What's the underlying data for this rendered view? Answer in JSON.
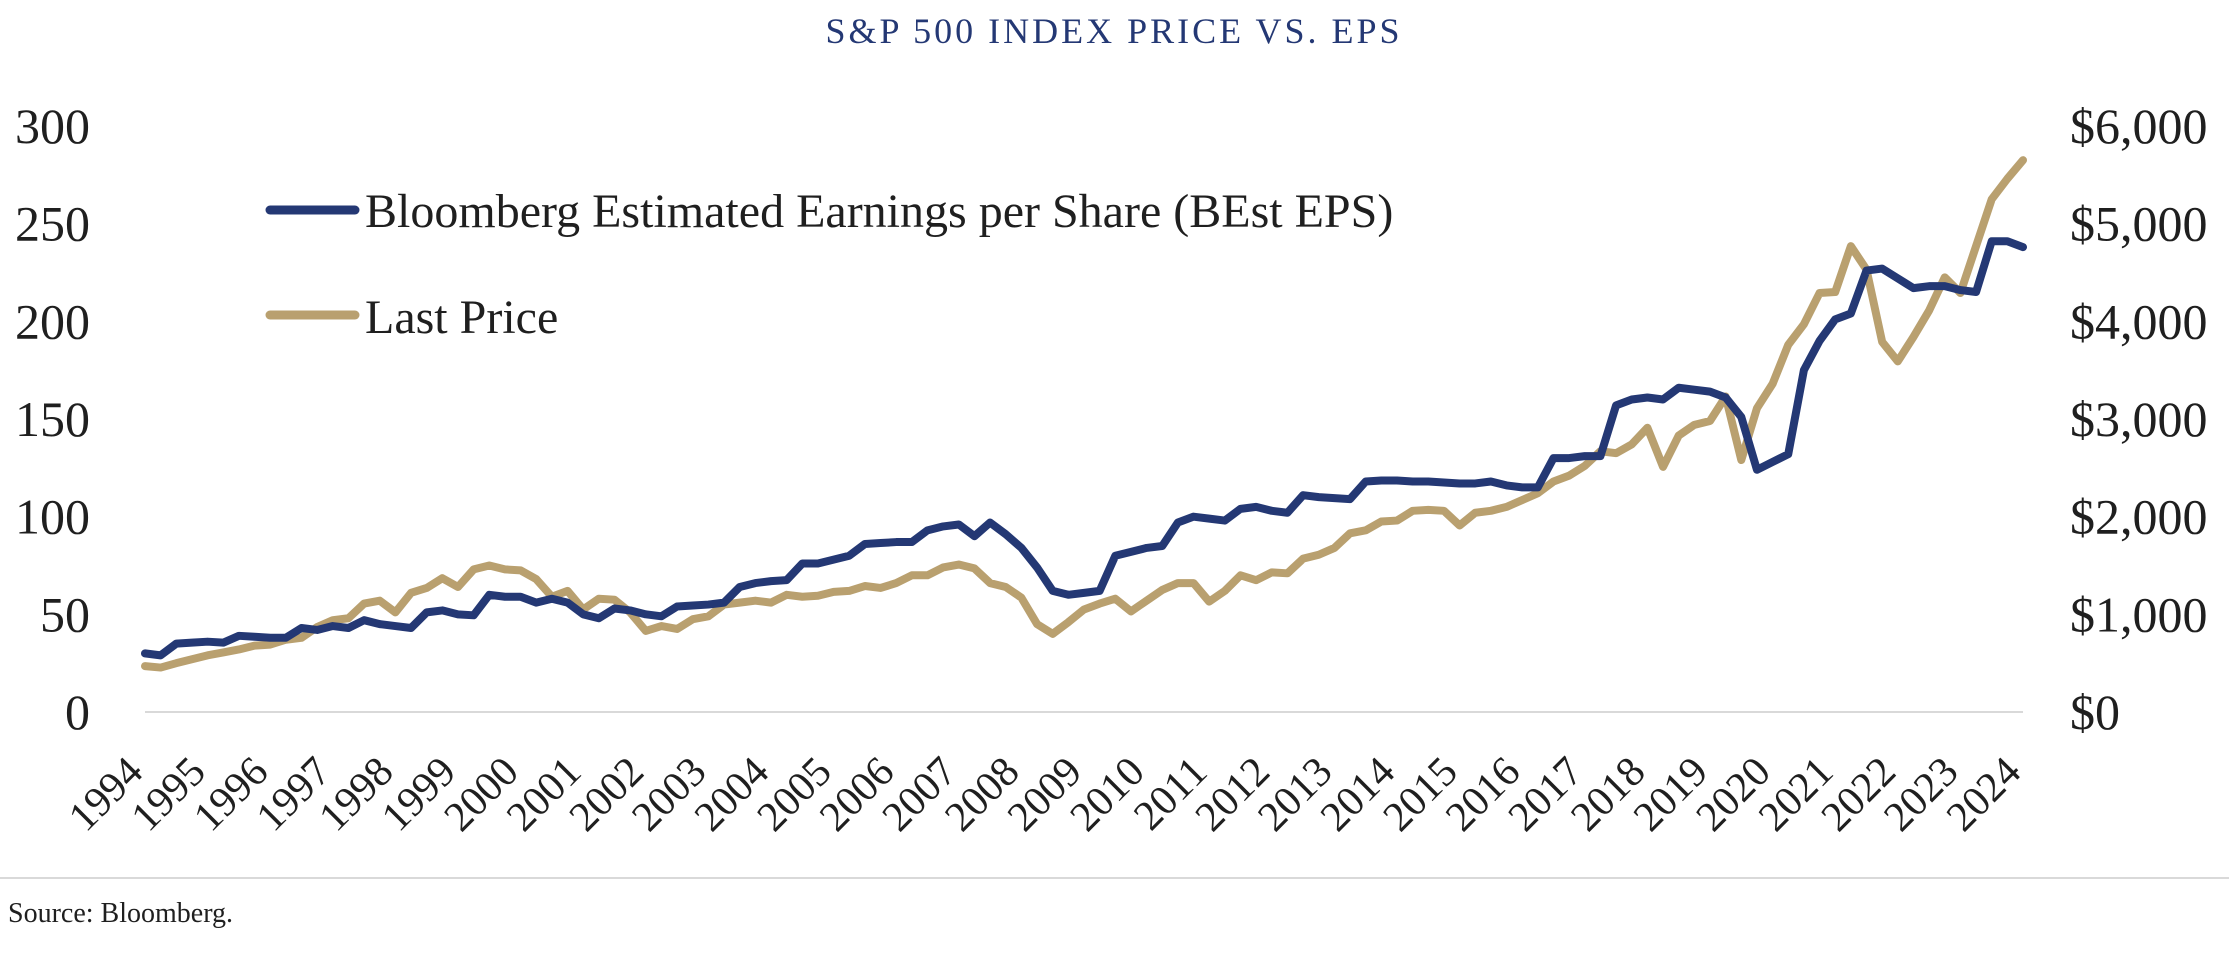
{
  "chart_data": {
    "type": "line",
    "title": "S&P 500 INDEX PRICE VS. EPS",
    "source": "Source: Bloomberg.",
    "xlabel": "",
    "ylabel_left": "",
    "ylabel_right": "",
    "legend_position": "top-left",
    "grid": false,
    "colors": {
      "eps": "#243874",
      "price": "#B9A06F",
      "title": "#243874",
      "baseline": "#d9d9d9",
      "separator": "#d9d9d9",
      "text": "#1f1f1f"
    },
    "x_ticks": [
      "1994",
      "1995",
      "1996",
      "1997",
      "1998",
      "1999",
      "2000",
      "2001",
      "2002",
      "2003",
      "2004",
      "2005",
      "2006",
      "2007",
      "2008",
      "2009",
      "2010",
      "2011",
      "2012",
      "2013",
      "2014",
      "2015",
      "2016",
      "2017",
      "2018",
      "2019",
      "2020",
      "2021",
      "2022",
      "2023",
      "2024"
    ],
    "x_range": [
      1994.0,
      2024.0
    ],
    "y_left": {
      "range": [
        0,
        300
      ],
      "ticks": [
        0,
        50,
        100,
        150,
        200,
        250,
        300
      ],
      "tick_labels": [
        "0",
        "50",
        "100",
        "150",
        "200",
        "250",
        "300"
      ]
    },
    "y_right": {
      "range": [
        0,
        6000
      ],
      "ticks": [
        0,
        1000,
        2000,
        3000,
        4000,
        5000,
        6000
      ],
      "tick_labels": [
        "$0",
        "$1,000",
        "$2,000",
        "$3,000",
        "$4,000",
        "$5,000",
        "$6,000"
      ]
    },
    "series": [
      {
        "id": "eps",
        "name": "Bloomberg Estimated Earnings per Share (BEst EPS)",
        "axis": "left",
        "points": [
          [
            1994.0,
            30
          ],
          [
            1994.25,
            29
          ],
          [
            1994.5,
            35
          ],
          [
            1994.75,
            35.5
          ],
          [
            1995.0,
            36
          ],
          [
            1995.25,
            35.5
          ],
          [
            1995.5,
            39
          ],
          [
            1995.75,
            38.5
          ],
          [
            1996.0,
            38
          ],
          [
            1996.25,
            38
          ],
          [
            1996.5,
            43
          ],
          [
            1996.75,
            42
          ],
          [
            1997.0,
            44
          ],
          [
            1997.25,
            43
          ],
          [
            1997.5,
            47
          ],
          [
            1997.75,
            45
          ],
          [
            1998.0,
            44
          ],
          [
            1998.25,
            43
          ],
          [
            1998.5,
            51
          ],
          [
            1998.75,
            52
          ],
          [
            1999.0,
            50
          ],
          [
            1999.25,
            49.5
          ],
          [
            1999.5,
            60
          ],
          [
            1999.75,
            59
          ],
          [
            2000.0,
            59
          ],
          [
            2000.25,
            56
          ],
          [
            2000.5,
            58
          ],
          [
            2000.75,
            56
          ],
          [
            2001.0,
            50
          ],
          [
            2001.25,
            48
          ],
          [
            2001.5,
            53
          ],
          [
            2001.75,
            52
          ],
          [
            2002.0,
            50
          ],
          [
            2002.25,
            49
          ],
          [
            2002.5,
            54
          ],
          [
            2002.75,
            54.5
          ],
          [
            2003.0,
            55
          ],
          [
            2003.25,
            56
          ],
          [
            2003.5,
            64
          ],
          [
            2003.75,
            66
          ],
          [
            2004.0,
            67
          ],
          [
            2004.25,
            67.5
          ],
          [
            2004.5,
            76
          ],
          [
            2004.75,
            76
          ],
          [
            2005.0,
            78
          ],
          [
            2005.25,
            80
          ],
          [
            2005.5,
            86
          ],
          [
            2005.75,
            86.5
          ],
          [
            2006.0,
            87
          ],
          [
            2006.25,
            87
          ],
          [
            2006.5,
            93
          ],
          [
            2006.75,
            95
          ],
          [
            2007.0,
            96
          ],
          [
            2007.25,
            90
          ],
          [
            2007.5,
            97
          ],
          [
            2007.75,
            91
          ],
          [
            2008.0,
            84
          ],
          [
            2008.25,
            74
          ],
          [
            2008.5,
            62
          ],
          [
            2008.75,
            60
          ],
          [
            2009.0,
            61
          ],
          [
            2009.25,
            62
          ],
          [
            2009.5,
            80
          ],
          [
            2009.75,
            82
          ],
          [
            2010.0,
            84
          ],
          [
            2010.25,
            85
          ],
          [
            2010.5,
            97
          ],
          [
            2010.75,
            100
          ],
          [
            2011.0,
            99
          ],
          [
            2011.25,
            98
          ],
          [
            2011.5,
            104
          ],
          [
            2011.75,
            105
          ],
          [
            2012.0,
            103
          ],
          [
            2012.25,
            102
          ],
          [
            2012.5,
            111
          ],
          [
            2012.75,
            110
          ],
          [
            2013.0,
            109.5
          ],
          [
            2013.25,
            109
          ],
          [
            2013.5,
            118
          ],
          [
            2013.75,
            118.5
          ],
          [
            2014.0,
            118.5
          ],
          [
            2014.25,
            118
          ],
          [
            2014.5,
            118
          ],
          [
            2014.75,
            117.5
          ],
          [
            2015.0,
            117
          ],
          [
            2015.25,
            117
          ],
          [
            2015.5,
            118
          ],
          [
            2015.75,
            116
          ],
          [
            2016.0,
            115
          ],
          [
            2016.25,
            115
          ],
          [
            2016.5,
            130
          ],
          [
            2016.75,
            130
          ],
          [
            2017.0,
            131
          ],
          [
            2017.25,
            131
          ],
          [
            2017.5,
            157
          ],
          [
            2017.75,
            160
          ],
          [
            2018.0,
            161
          ],
          [
            2018.25,
            160
          ],
          [
            2018.5,
            166
          ],
          [
            2018.75,
            165
          ],
          [
            2019.0,
            164
          ],
          [
            2019.25,
            161
          ],
          [
            2019.5,
            151
          ],
          [
            2019.75,
            124
          ],
          [
            2020.0,
            128
          ],
          [
            2020.25,
            132
          ],
          [
            2020.5,
            175
          ],
          [
            2020.75,
            190
          ],
          [
            2021.0,
            201
          ],
          [
            2021.25,
            204
          ],
          [
            2021.5,
            226
          ],
          [
            2021.75,
            227
          ],
          [
            2022.0,
            222
          ],
          [
            2022.25,
            217
          ],
          [
            2022.5,
            218
          ],
          [
            2022.75,
            218
          ],
          [
            2023.0,
            216
          ],
          [
            2023.25,
            215
          ],
          [
            2023.5,
            241
          ],
          [
            2023.75,
            241
          ],
          [
            2024.0,
            238
          ]
        ]
      },
      {
        "id": "price",
        "name": "Last Price",
        "axis": "right",
        "points": [
          [
            1994.0,
            470
          ],
          [
            1994.25,
            455
          ],
          [
            1994.5,
            500
          ],
          [
            1994.75,
            540
          ],
          [
            1995.0,
            580
          ],
          [
            1995.25,
            610
          ],
          [
            1995.5,
            640
          ],
          [
            1995.75,
            680
          ],
          [
            1996.0,
            690
          ],
          [
            1996.25,
            740
          ],
          [
            1996.5,
            760
          ],
          [
            1996.75,
            870
          ],
          [
            1997.0,
            940
          ],
          [
            1997.25,
            960
          ],
          [
            1997.5,
            1110
          ],
          [
            1997.75,
            1140
          ],
          [
            1998.0,
            1020
          ],
          [
            1998.25,
            1220
          ],
          [
            1998.5,
            1270
          ],
          [
            1998.75,
            1370
          ],
          [
            1999.0,
            1280
          ],
          [
            1999.25,
            1460
          ],
          [
            1999.5,
            1500
          ],
          [
            1999.75,
            1460
          ],
          [
            2000.0,
            1450
          ],
          [
            2000.25,
            1360
          ],
          [
            2000.5,
            1180
          ],
          [
            2000.75,
            1240
          ],
          [
            2001.0,
            1050
          ],
          [
            2001.25,
            1160
          ],
          [
            2001.5,
            1150
          ],
          [
            2001.75,
            1020
          ],
          [
            2002.0,
            830
          ],
          [
            2002.25,
            880
          ],
          [
            2002.5,
            850
          ],
          [
            2002.75,
            950
          ],
          [
            2003.0,
            980
          ],
          [
            2003.25,
            1100
          ],
          [
            2003.5,
            1120
          ],
          [
            2003.75,
            1140
          ],
          [
            2004.0,
            1120
          ],
          [
            2004.25,
            1200
          ],
          [
            2004.5,
            1180
          ],
          [
            2004.75,
            1190
          ],
          [
            2005.0,
            1230
          ],
          [
            2005.25,
            1240
          ],
          [
            2005.5,
            1290
          ],
          [
            2005.75,
            1270
          ],
          [
            2006.0,
            1320
          ],
          [
            2006.25,
            1400
          ],
          [
            2006.5,
            1400
          ],
          [
            2006.75,
            1480
          ],
          [
            2007.0,
            1510
          ],
          [
            2007.25,
            1470
          ],
          [
            2007.5,
            1320
          ],
          [
            2007.75,
            1280
          ],
          [
            2008.0,
            1170
          ],
          [
            2008.25,
            900
          ],
          [
            2008.5,
            800
          ],
          [
            2008.75,
            920
          ],
          [
            2009.0,
            1050
          ],
          [
            2009.25,
            1110
          ],
          [
            2009.5,
            1160
          ],
          [
            2009.75,
            1030
          ],
          [
            2010.0,
            1140
          ],
          [
            2010.25,
            1250
          ],
          [
            2010.5,
            1320
          ],
          [
            2010.75,
            1320
          ],
          [
            2011.0,
            1130
          ],
          [
            2011.25,
            1240
          ],
          [
            2011.5,
            1400
          ],
          [
            2011.75,
            1350
          ],
          [
            2012.0,
            1430
          ],
          [
            2012.25,
            1420
          ],
          [
            2012.5,
            1570
          ],
          [
            2012.75,
            1610
          ],
          [
            2013.0,
            1680
          ],
          [
            2013.25,
            1830
          ],
          [
            2013.5,
            1860
          ],
          [
            2013.75,
            1950
          ],
          [
            2014.0,
            1960
          ],
          [
            2014.25,
            2060
          ],
          [
            2014.5,
            2070
          ],
          [
            2014.75,
            2060
          ],
          [
            2015.0,
            1910
          ],
          [
            2015.25,
            2040
          ],
          [
            2015.5,
            2060
          ],
          [
            2015.75,
            2100
          ],
          [
            2016.0,
            2170
          ],
          [
            2016.25,
            2240
          ],
          [
            2016.5,
            2360
          ],
          [
            2016.75,
            2420
          ],
          [
            2017.0,
            2520
          ],
          [
            2017.25,
            2670
          ],
          [
            2017.5,
            2650
          ],
          [
            2017.75,
            2740
          ],
          [
            2018.0,
            2910
          ],
          [
            2018.25,
            2510
          ],
          [
            2018.5,
            2830
          ],
          [
            2018.75,
            2940
          ],
          [
            2019.0,
            2980
          ],
          [
            2019.25,
            3230
          ],
          [
            2019.5,
            2580
          ],
          [
            2019.75,
            3110
          ],
          [
            2020.0,
            3360
          ],
          [
            2020.25,
            3760
          ],
          [
            2020.5,
            3970
          ],
          [
            2020.75,
            4290
          ],
          [
            2021.0,
            4300
          ],
          [
            2021.25,
            4770
          ],
          [
            2021.5,
            4530
          ],
          [
            2021.75,
            3790
          ],
          [
            2022.0,
            3590
          ],
          [
            2022.25,
            3840
          ],
          [
            2022.5,
            4110
          ],
          [
            2022.75,
            4450
          ],
          [
            2023.0,
            4290
          ],
          [
            2023.25,
            4770
          ],
          [
            2023.5,
            5250
          ],
          [
            2023.75,
            5460
          ],
          [
            2024.0,
            5650
          ]
        ]
      }
    ]
  }
}
